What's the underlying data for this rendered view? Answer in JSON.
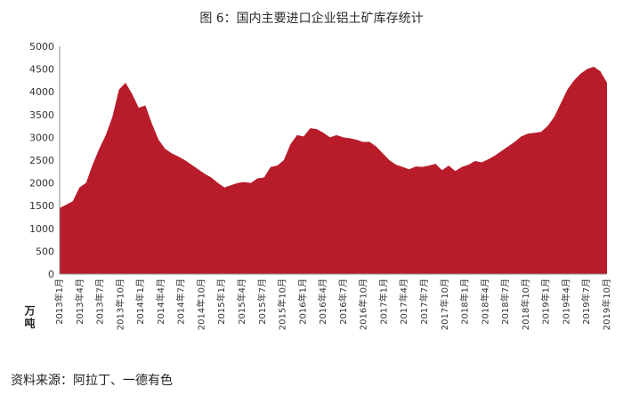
{
  "title": "图 6：国内主要进口企业铝土矿库存统计",
  "unit_label": "万吨",
  "source_note": "资料来源：阿拉丁、一德有色",
  "colors": {
    "area_fill": "#b81c2b",
    "axis": "#888888"
  },
  "chart_data": {
    "type": "area",
    "title": "图 6：国内主要进口企业铝土矿库存统计",
    "ylabel": "万吨",
    "xlabel": "",
    "ylim": [
      0,
      5000
    ],
    "yticks": [
      0,
      500,
      1000,
      1500,
      2000,
      2500,
      3000,
      3500,
      4000,
      4500,
      5000
    ],
    "grid": false,
    "legend": "none",
    "xtick_labels": [
      "2013年1月",
      "2013年4月",
      "2013年7月",
      "2013年10月",
      "2014年1月",
      "2014年4月",
      "2014年7月",
      "2014年10月",
      "2015年1月",
      "2015年4月",
      "2015年7月",
      "2015年10月",
      "2016年1月",
      "2016年4月",
      "2016年7月",
      "2016年10月",
      "2017年1月",
      "2017年4月",
      "2017年7月",
      "2017年10月",
      "2018年1月",
      "2018年4月",
      "2018年7月",
      "2018年10月",
      "2019年1月",
      "2019年4月",
      "2019年7月",
      "2019年10月"
    ],
    "series": [
      {
        "values": [
          1450,
          1520,
          1600,
          1900,
          2000,
          2400,
          2750,
          3050,
          3450,
          4050,
          4200,
          3950,
          3650,
          3700,
          3300,
          2950,
          2750,
          2650,
          2580,
          2500,
          2400,
          2300,
          2200,
          2120,
          2000,
          1900,
          1950,
          2000,
          2020,
          2000,
          2100,
          2120,
          2350,
          2380,
          2500,
          2850,
          3050,
          3020,
          3200,
          3180,
          3100,
          3000,
          3050,
          3000,
          2980,
          2950,
          2900,
          2900,
          2800,
          2650,
          2500,
          2400,
          2350,
          2300,
          2360,
          2350,
          2380,
          2420,
          2280,
          2380,
          2260,
          2350,
          2400,
          2480,
          2450,
          2520,
          2600,
          2700,
          2800,
          2900,
          3020,
          3080,
          3100,
          3120,
          3250,
          3450,
          3750,
          4050,
          4250,
          4400,
          4500,
          4550,
          4450,
          4200
        ]
      }
    ]
  }
}
